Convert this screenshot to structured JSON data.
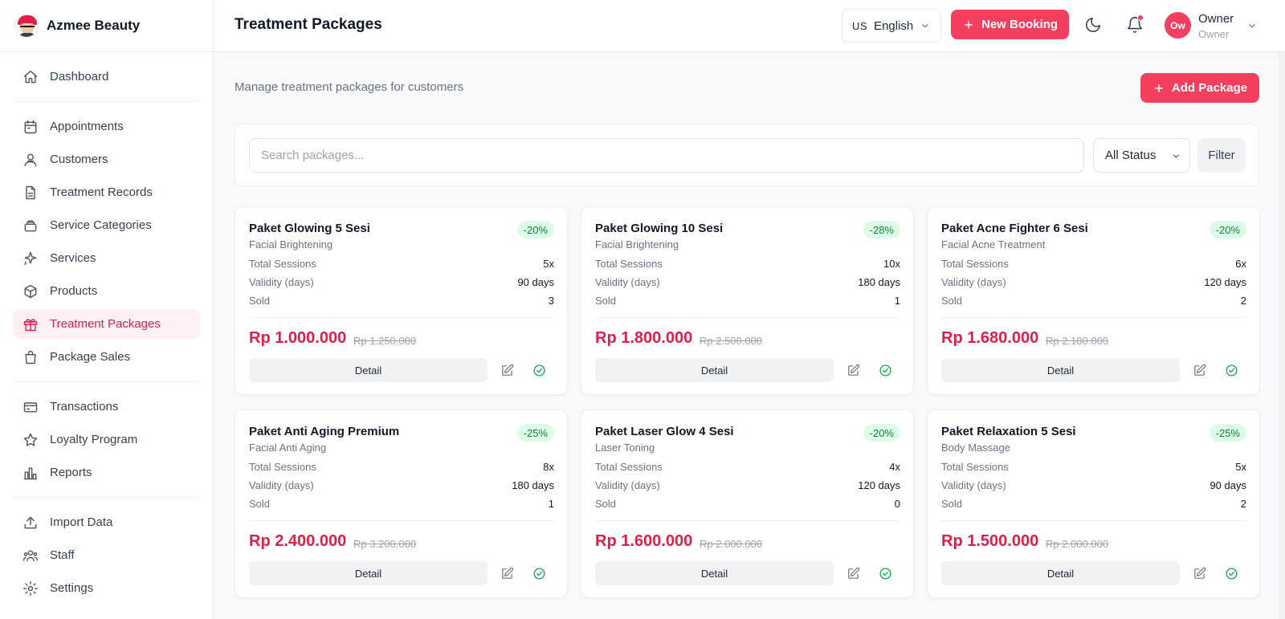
{
  "brand": {
    "name": "Azmee Beauty"
  },
  "sidebar": {
    "groups": [
      [
        {
          "label": "Dashboard",
          "icon": "home-icon"
        }
      ],
      [
        {
          "label": "Appointments",
          "icon": "calendar-icon"
        },
        {
          "label": "Customers",
          "icon": "users-icon"
        },
        {
          "label": "Treatment Records",
          "icon": "file-icon"
        },
        {
          "label": "Service Categories",
          "icon": "layers-icon"
        },
        {
          "label": "Services",
          "icon": "sparkles-icon"
        },
        {
          "label": "Products",
          "icon": "box-icon"
        },
        {
          "label": "Treatment Packages",
          "icon": "gift-icon",
          "active": true
        },
        {
          "label": "Package Sales",
          "icon": "bag-icon"
        }
      ],
      [
        {
          "label": "Transactions",
          "icon": "card-icon"
        },
        {
          "label": "Loyalty Program",
          "icon": "star-icon"
        },
        {
          "label": "Reports",
          "icon": "chart-icon"
        }
      ],
      [
        {
          "label": "Import Data",
          "icon": "upload-icon"
        },
        {
          "label": "Staff",
          "icon": "team-icon"
        },
        {
          "label": "Settings",
          "icon": "gear-icon"
        }
      ]
    ]
  },
  "header": {
    "title": "Treatment Packages",
    "language": {
      "flag": "US",
      "label": "English"
    },
    "new_booking_label": "New Booking",
    "user": {
      "initials": "Ow",
      "name": "Owner",
      "role": "Owner"
    }
  },
  "main": {
    "subtitle": "Manage treatment packages for customers",
    "add_package_label": "Add Package",
    "search": {
      "placeholder": "Search packages...",
      "value": ""
    },
    "status_filter": "All Status",
    "filter_label": "Filter"
  },
  "card_labels": {
    "total_sessions": "Total Sessions",
    "validity": "Validity (days)",
    "sold": "Sold",
    "detail": "Detail"
  },
  "packages": [
    {
      "name": "Paket Glowing 5 Sesi",
      "category": "Facial Brightening",
      "discount": "-20%",
      "sessions": "5x",
      "validity": "90 days",
      "sold": "3",
      "price": "Rp 1.000.000",
      "old_price": "Rp 1.250.000"
    },
    {
      "name": "Paket Glowing 10 Sesi",
      "category": "Facial Brightening",
      "discount": "-28%",
      "sessions": "10x",
      "validity": "180 days",
      "sold": "1",
      "price": "Rp 1.800.000",
      "old_price": "Rp 2.500.000"
    },
    {
      "name": "Paket Acne Fighter 6 Sesi",
      "category": "Facial Acne Treatment",
      "discount": "-20%",
      "sessions": "6x",
      "validity": "120 days",
      "sold": "2",
      "price": "Rp 1.680.000",
      "old_price": "Rp 2.100.000"
    },
    {
      "name": "Paket Anti Aging Premium",
      "category": "Facial Anti Aging",
      "discount": "-25%",
      "sessions": "8x",
      "validity": "180 days",
      "sold": "1",
      "price": "Rp 2.400.000",
      "old_price": "Rp 3.200.000"
    },
    {
      "name": "Paket Laser Glow 4 Sesi",
      "category": "Laser Toning",
      "discount": "-20%",
      "sessions": "4x",
      "validity": "120 days",
      "sold": "0",
      "price": "Rp 1.600.000",
      "old_price": "Rp 2.000.000"
    },
    {
      "name": "Paket Relaxation 5 Sesi",
      "category": "Body Massage",
      "discount": "-25%",
      "sessions": "5x",
      "validity": "90 days",
      "sold": "2",
      "price": "Rp 1.500.000",
      "old_price": "Rp 2.000.000"
    }
  ],
  "colors": {
    "accent": "#f43f5e",
    "accent_text": "#e11d48",
    "badge_bg": "#dcfce7",
    "badge_text": "#15803d"
  }
}
